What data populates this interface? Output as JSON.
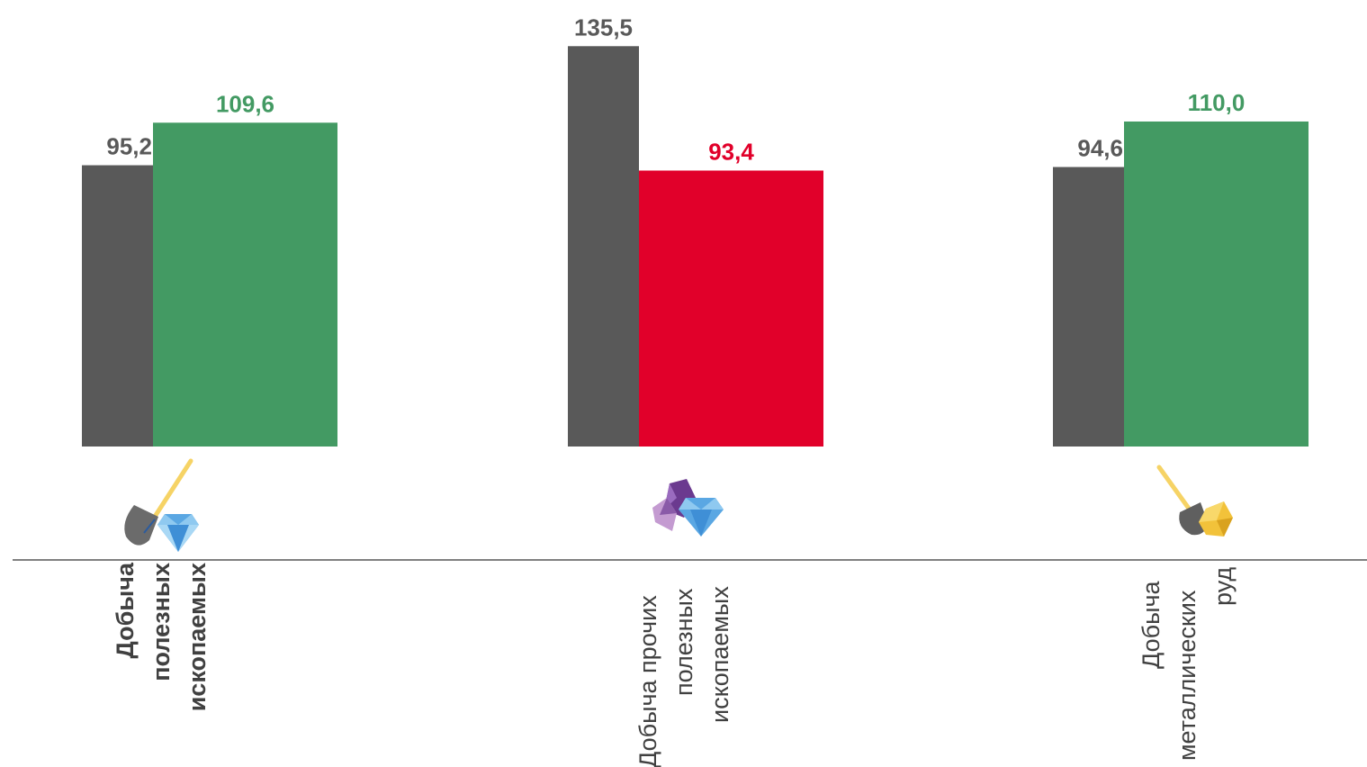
{
  "colors": {
    "previous": "#595959",
    "increase": "#439a63",
    "decrease": "#e1002a",
    "axis": "#808080",
    "category_text": "#404040"
  },
  "chart_data": {
    "type": "bar",
    "ylim": [
      0,
      140
    ],
    "grid": false,
    "legend": "none",
    "groups": [
      {
        "label_lines": [
          "Добыча",
          "полезных",
          "ископаемых"
        ],
        "bold": true,
        "icon": "shovel-diamond-icon",
        "values": [
          {
            "value": 95.2,
            "label": "95,2",
            "color_role": "previous"
          },
          {
            "value": 109.6,
            "label": "109,6",
            "color_role": "increase"
          }
        ]
      },
      {
        "label_lines": [
          "Добыча прочих",
          "полезных",
          "ископаемых"
        ],
        "bold": false,
        "icon": "crystals-diamond-icon",
        "values": [
          {
            "value": 135.5,
            "label": "135,5",
            "color_role": "previous"
          },
          {
            "value": 93.4,
            "label": "93,4",
            "color_role": "decrease"
          }
        ]
      },
      {
        "label_lines": [
          "Добыча",
          "металлических",
          "руд"
        ],
        "bold": false,
        "icon": "shovel-gold-icon",
        "values": [
          {
            "value": 94.6,
            "label": "94,6",
            "color_role": "previous"
          },
          {
            "value": 110.0,
            "label": "110,0",
            "color_role": "increase"
          }
        ]
      }
    ]
  }
}
